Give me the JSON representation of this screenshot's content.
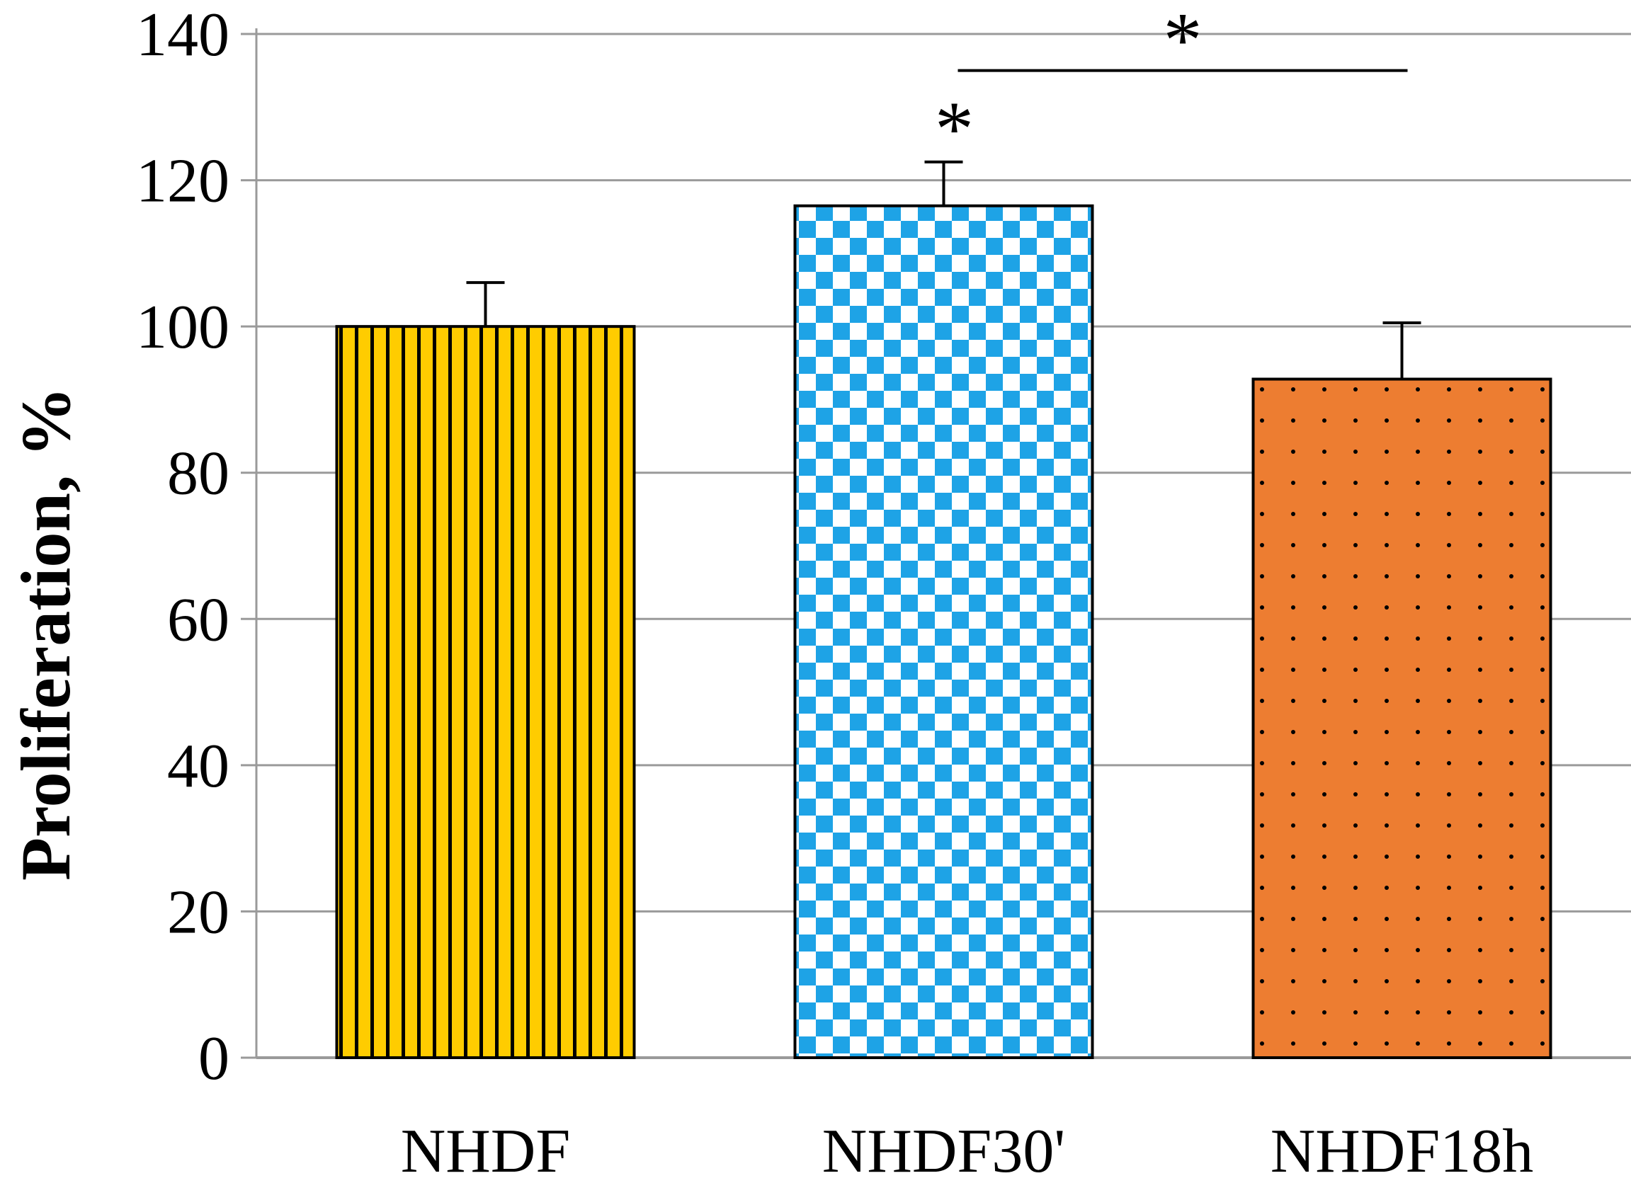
{
  "chart_data": {
    "type": "bar",
    "categories": [
      "NHDF",
      "NHDF30'",
      "NHDF18h"
    ],
    "values": [
      100,
      116.5,
      92.8
    ],
    "error_plus": [
      6,
      6,
      7.7
    ],
    "ylabel": "Proliferation, %",
    "xlabel": "",
    "ylim": [
      0,
      140
    ],
    "yticks": [
      0,
      20,
      40,
      60,
      80,
      100,
      120,
      140
    ],
    "grid": true,
    "bar_colors": [
      "#ffcc00",
      "#1ea3e6",
      "#ed7d31"
    ],
    "bar_patterns": [
      "vertical-stripes",
      "checkerboard",
      "dots"
    ],
    "annotations": [
      {
        "text": "*",
        "type": "bar",
        "category": "NHDF30'"
      },
      {
        "text": "*",
        "type": "bracket",
        "from": "NHDF30'",
        "to": "NHDF18h"
      }
    ]
  }
}
